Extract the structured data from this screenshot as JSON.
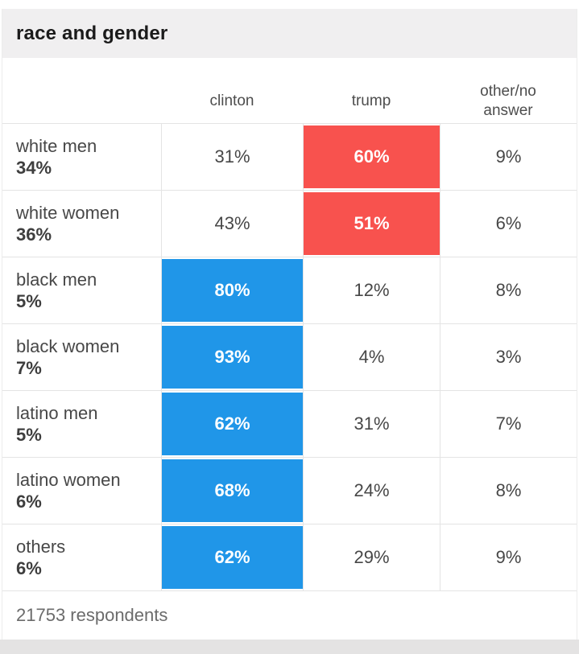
{
  "title": "race and gender",
  "columns": [
    "clinton",
    "trump",
    "other/no answer"
  ],
  "rows": [
    {
      "label": "white men",
      "share": "34%",
      "clinton": "31%",
      "trump": "60%",
      "other": "9%",
      "highlight": "trump"
    },
    {
      "label": "white women",
      "share": "36%",
      "clinton": "43%",
      "trump": "51%",
      "other": "6%",
      "highlight": "trump"
    },
    {
      "label": "black men",
      "share": "5%",
      "clinton": "80%",
      "trump": "12%",
      "other": "8%",
      "highlight": "clinton"
    },
    {
      "label": "black women",
      "share": "7%",
      "clinton": "93%",
      "trump": "4%",
      "other": "3%",
      "highlight": "clinton"
    },
    {
      "label": "latino men",
      "share": "5%",
      "clinton": "62%",
      "trump": "31%",
      "other": "7%",
      "highlight": "clinton"
    },
    {
      "label": "latino women",
      "share": "6%",
      "clinton": "68%",
      "trump": "24%",
      "other": "8%",
      "highlight": "clinton"
    },
    {
      "label": "others",
      "share": "6%",
      "clinton": "62%",
      "trump": "29%",
      "other": "9%",
      "highlight": "clinton"
    }
  ],
  "footer": "21753 respondents",
  "colors": {
    "clinton_highlight": "#2096e8",
    "trump_highlight": "#f8524e"
  },
  "chart_data": {
    "type": "table",
    "title": "race and gender",
    "columns": [
      "clinton",
      "trump",
      "other/no answer"
    ],
    "row_labels": [
      "white men",
      "white women",
      "black men",
      "black women",
      "latino men",
      "latino women",
      "others"
    ],
    "group_share_percent": [
      34,
      36,
      5,
      7,
      5,
      6,
      6
    ],
    "series": [
      {
        "name": "clinton",
        "values": [
          31,
          43,
          80,
          93,
          62,
          68,
          62
        ]
      },
      {
        "name": "trump",
        "values": [
          60,
          51,
          12,
          4,
          31,
          24,
          29
        ]
      },
      {
        "name": "other/no answer",
        "values": [
          9,
          6,
          8,
          3,
          7,
          8,
          9
        ]
      }
    ],
    "highlighted_winner_per_row": [
      "trump",
      "trump",
      "clinton",
      "clinton",
      "clinton",
      "clinton",
      "clinton"
    ],
    "annotations": [
      "21753 respondents"
    ]
  }
}
